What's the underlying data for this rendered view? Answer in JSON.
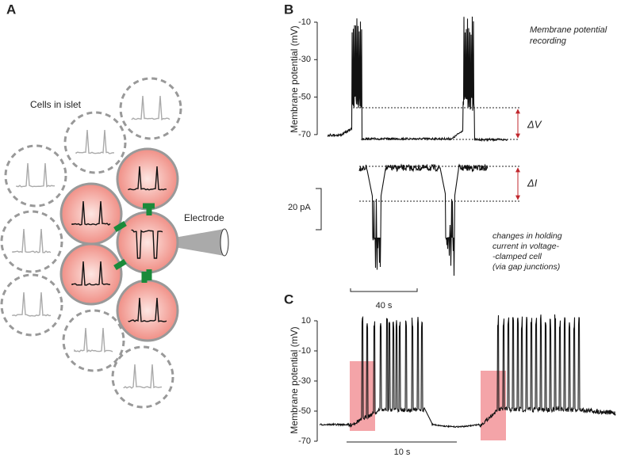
{
  "panels": {
    "a": {
      "label": "A",
      "cells_label": "Cells in islet",
      "electrode_label": "Electrode"
    },
    "b": {
      "label": "B",
      "y_axis_label": "Membrane potential (mV)",
      "y_ticks": [
        "-10",
        "-30",
        "-50",
        "-70"
      ],
      "recording_note": [
        "Membrane potential",
        "recording"
      ],
      "delta_v": "ΔV",
      "delta_i": "ΔI",
      "current_scale": "20 pA",
      "current_note": [
        "changes in holding",
        "current in voltage-",
        "-clamped cell",
        "(via gap junctions)"
      ],
      "time_scale": "40 s"
    },
    "c": {
      "label": "C",
      "y_axis_label": "Membrane potential (mV)",
      "y_ticks": [
        "10",
        "-10",
        "-30",
        "-50",
        "-70"
      ],
      "time_scale": "10 s"
    }
  }
}
